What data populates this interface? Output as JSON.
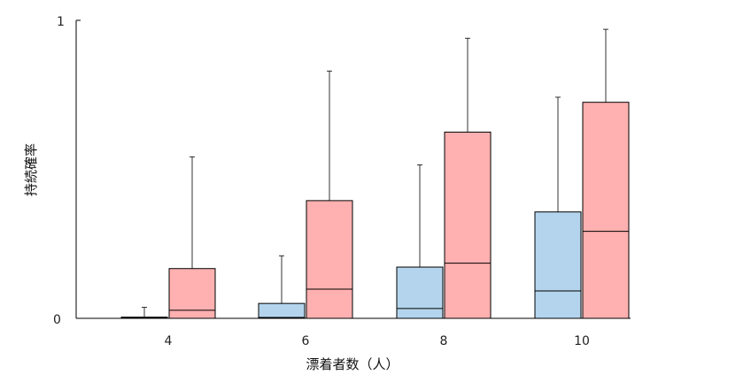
{
  "chart_data": {
    "type": "box",
    "ylabel": "持続確率",
    "xlabel": "漂着者数（人）",
    "ylim": [
      0,
      1
    ],
    "yticks": [
      "0",
      "1"
    ],
    "categories": [
      "4",
      "6",
      "8",
      "10"
    ],
    "series": [
      {
        "color": "#b3d4ec",
        "boxes": [
          {
            "q1": 0.0,
            "median": 0.002,
            "q3": 0.004,
            "whisker_high": 0.037
          },
          {
            "q1": 0.0,
            "median": 0.003,
            "q3": 0.05,
            "whisker_high": 0.21
          },
          {
            "q1": 0.0,
            "median": 0.033,
            "q3": 0.172,
            "whisker_high": 0.515
          },
          {
            "q1": 0.0,
            "median": 0.092,
            "q3": 0.357,
            "whisker_high": 0.742
          }
        ]
      },
      {
        "color": "#ffb0b0",
        "boxes": [
          {
            "q1": 0.0,
            "median": 0.027,
            "q3": 0.167,
            "whisker_high": 0.542
          },
          {
            "q1": 0.0,
            "median": 0.098,
            "q3": 0.395,
            "whisker_high": 0.83
          },
          {
            "q1": 0.0,
            "median": 0.185,
            "q3": 0.625,
            "whisker_high": 0.94
          },
          {
            "q1": 0.0,
            "median": 0.292,
            "q3": 0.725,
            "whisker_high": 0.97
          }
        ]
      }
    ]
  }
}
